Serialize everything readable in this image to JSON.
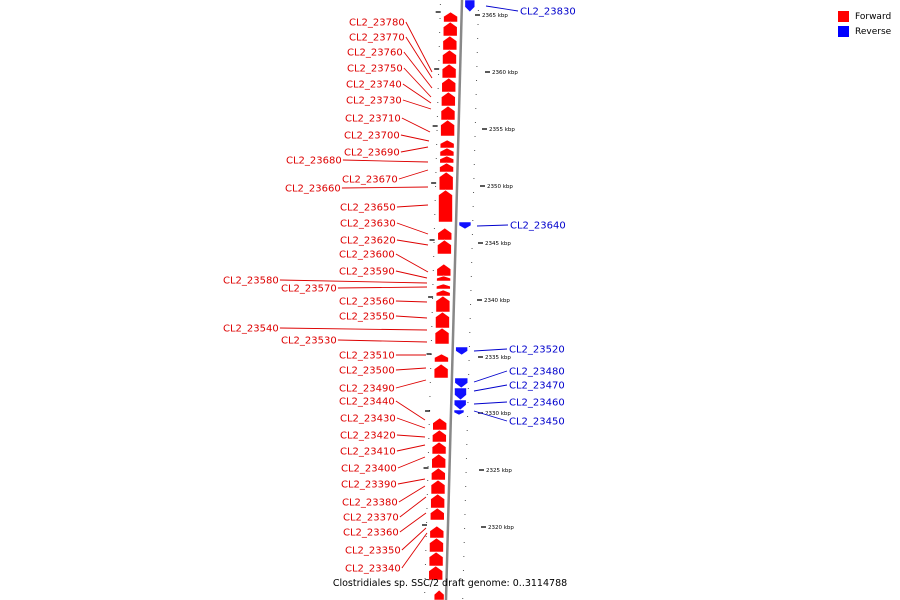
{
  "caption": "Clostridiales sp. SSC/2 draft genome: 0..3114788",
  "legend": [
    {
      "label": "Forward",
      "color": "#ff0000"
    },
    {
      "label": "Reverse",
      "color": "#0000ff"
    }
  ],
  "colors": {
    "forward": "#ff0000",
    "reverse": "#1010ff",
    "forward_label": "#dd0000",
    "reverse_label": "#0000cc",
    "axis": "#888888"
  },
  "scale_ticks": [
    "2365 kbp",
    "2360 kbp",
    "2355 kbp",
    "2350 kbp",
    "2345 kbp",
    "2340 kbp",
    "2335 kbp",
    "2330 kbp",
    "2325 kbp",
    "2320 kbp"
  ],
  "genes": [
    {
      "name": "CL2_23780",
      "strand": "forward"
    },
    {
      "name": "CL2_23770",
      "strand": "forward"
    },
    {
      "name": "CL2_23760",
      "strand": "forward"
    },
    {
      "name": "CL2_23750",
      "strand": "forward"
    },
    {
      "name": "CL2_23740",
      "strand": "forward"
    },
    {
      "name": "CL2_23730",
      "strand": "forward"
    },
    {
      "name": "CL2_23710",
      "strand": "forward"
    },
    {
      "name": "CL2_23700",
      "strand": "forward"
    },
    {
      "name": "CL2_23690",
      "strand": "forward"
    },
    {
      "name": "CL2_23680",
      "strand": "forward"
    },
    {
      "name": "CL2_23670",
      "strand": "forward"
    },
    {
      "name": "CL2_23660",
      "strand": "forward"
    },
    {
      "name": "CL2_23650",
      "strand": "forward"
    },
    {
      "name": "CL2_23630",
      "strand": "forward"
    },
    {
      "name": "CL2_23620",
      "strand": "forward"
    },
    {
      "name": "CL2_23600",
      "strand": "forward"
    },
    {
      "name": "CL2_23590",
      "strand": "forward"
    },
    {
      "name": "CL2_23580",
      "strand": "forward"
    },
    {
      "name": "CL2_23570",
      "strand": "forward"
    },
    {
      "name": "CL2_23560",
      "strand": "forward"
    },
    {
      "name": "CL2_23550",
      "strand": "forward"
    },
    {
      "name": "CL2_23540",
      "strand": "forward"
    },
    {
      "name": "CL2_23530",
      "strand": "forward"
    },
    {
      "name": "CL2_23510",
      "strand": "forward"
    },
    {
      "name": "CL2_23500",
      "strand": "forward"
    },
    {
      "name": "CL2_23490",
      "strand": "forward"
    },
    {
      "name": "CL2_23440",
      "strand": "forward"
    },
    {
      "name": "CL2_23430",
      "strand": "forward"
    },
    {
      "name": "CL2_23420",
      "strand": "forward"
    },
    {
      "name": "CL2_23410",
      "strand": "forward"
    },
    {
      "name": "CL2_23400",
      "strand": "forward"
    },
    {
      "name": "CL2_23390",
      "strand": "forward"
    },
    {
      "name": "CL2_23380",
      "strand": "forward"
    },
    {
      "name": "CL2_23370",
      "strand": "forward"
    },
    {
      "name": "CL2_23360",
      "strand": "forward"
    },
    {
      "name": "CL2_23350",
      "strand": "forward"
    },
    {
      "name": "CL2_23340",
      "strand": "forward"
    },
    {
      "name": "CL2_23830",
      "strand": "reverse"
    },
    {
      "name": "CL2_23640",
      "strand": "reverse"
    },
    {
      "name": "CL2_23520",
      "strand": "reverse"
    },
    {
      "name": "CL2_23480",
      "strand": "reverse"
    },
    {
      "name": "CL2_23470",
      "strand": "reverse"
    },
    {
      "name": "CL2_23460",
      "strand": "reverse"
    },
    {
      "name": "CL2_23450",
      "strand": "reverse"
    }
  ]
}
